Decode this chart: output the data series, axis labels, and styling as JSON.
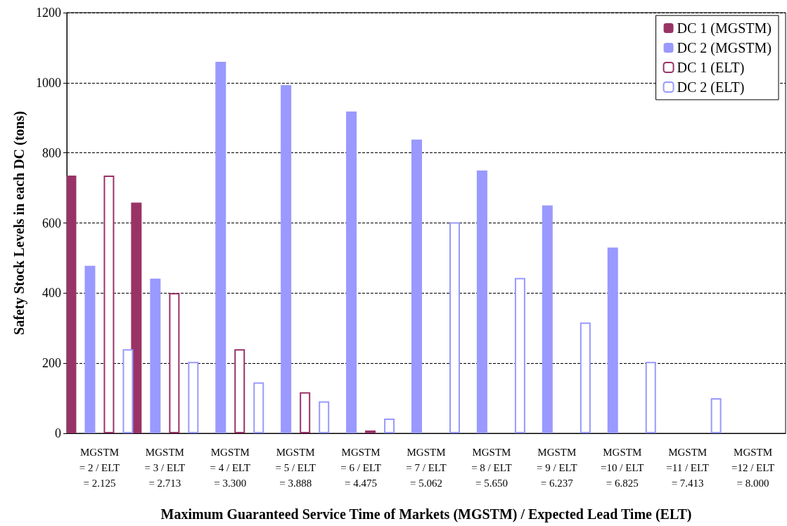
{
  "chart_data": {
    "type": "bar",
    "xlabel": "Maximum Guaranteed Service Time of Markets (MGSTM) / Expected Lead Time (ELT)",
    "ylabel": "Safety Stock Levels in each DC (tons)",
    "categories": [
      "MGSTM\n= 2 / ELT\n= 2.125",
      "MGSTM\n= 3 / ELT\n= 2.713",
      "MGSTM\n= 4 / ELT\n= 3.300",
      "MGSTM\n= 5 / ELT\n= 3.888",
      "MGSTM\n= 6 / ELT\n= 4.475",
      "MGSTM\n= 7 / ELT\n= 5.062",
      "MGSTM\n= 8 / ELT\n= 5.650",
      "MGSTM\n= 9 / ELT\n= 6.237",
      "MGSTM\n=10 / ELT\n= 6.825",
      "MGSTM\n=11 / ELT\n= 7.413",
      "MGSTM\n=12 / ELT\n= 8.000"
    ],
    "series": [
      {
        "name": "DC 1 (MGSTM)",
        "color": "#993366",
        "values": [
          735,
          658,
          null,
          null,
          null,
          null,
          null,
          null,
          null,
          null,
          null
        ]
      },
      {
        "name": "DC 2 (MGSTM)",
        "color": "#9999ff",
        "values": [
          478,
          441,
          1060,
          993,
          918,
          838,
          750,
          650,
          530,
          null,
          null
        ]
      },
      {
        "name": "DC 1 (ELT)",
        "color": "#993366",
        "values": [
          735,
          400,
          240,
          117,
          5,
          null,
          null,
          null,
          null,
          null,
          null
        ]
      },
      {
        "name": "DC 2 (ELT)",
        "color": "#9999ff",
        "values": [
          240,
          204,
          145,
          91,
          42,
          602,
          443,
          316,
          204,
          100,
          null
        ]
      }
    ],
    "ylim": [
      0,
      1200
    ],
    "yticks": [
      0,
      200,
      400,
      600,
      800,
      {
        "value": 1000,
        "label": "1000"
      },
      {
        "value": 1200,
        "label": "1200"
      }
    ],
    "grid": "y",
    "legend": "top right"
  }
}
